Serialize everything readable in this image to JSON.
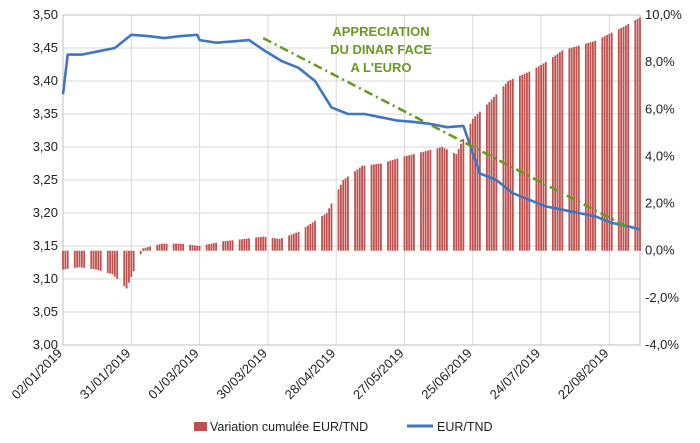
{
  "chart_data": {
    "type": "bar+line",
    "title": "",
    "annotation": [
      "APPRECIATION",
      "DU DINAR FACE",
      "A L'EURO"
    ],
    "left_axis": {
      "ylim": [
        3.0,
        3.5
      ],
      "ticks": [
        3.0,
        3.05,
        3.1,
        3.15,
        3.2,
        3.25,
        3.3,
        3.35,
        3.4,
        3.45,
        3.5
      ],
      "tick_labels": [
        "3,00",
        "3,05",
        "3,10",
        "3,15",
        "3,20",
        "3,25",
        "3,30",
        "3,35",
        "3,40",
        "3,45",
        "3,50"
      ]
    },
    "right_axis": {
      "ylim": [
        -4.0,
        10.0
      ],
      "ticks": [
        -4,
        -2,
        0,
        2,
        4,
        6,
        8,
        10
      ],
      "tick_labels": [
        "-4,0%",
        "-2,0%",
        "0,0%",
        "2,0%",
        "4,0%",
        "6,0%",
        "8,0%",
        "10,0%"
      ]
    },
    "x_axis": {
      "ticks": [
        "2019-01-02",
        "2019-01-31",
        "2019-03-01",
        "2019-03-30",
        "2019-04-28",
        "2019-05-27",
        "2019-06-25",
        "2019-07-24",
        "2019-08-22"
      ],
      "tick_labels": [
        "02/01/2019",
        "31/01/2019",
        "01/03/2019",
        "30/03/2019",
        "28/04/2019",
        "27/05/2019",
        "25/06/2019",
        "24/07/2019",
        "22/08/2019"
      ],
      "range": [
        "2019-01-02",
        "2019-09-04"
      ]
    },
    "grid": true,
    "legend_position": "bottom",
    "series": [
      {
        "name": "Variation cumulée EUR/TND",
        "type": "bar",
        "axis": "right",
        "color": "#c0504d",
        "x": [
          "2019-01-02",
          "2019-01-09",
          "2019-01-16",
          "2019-01-23",
          "2019-01-29",
          "2019-02-05",
          "2019-02-13",
          "2019-02-21",
          "2019-03-01",
          "2019-03-11",
          "2019-03-20",
          "2019-03-28",
          "2019-04-04",
          "2019-04-12",
          "2019-04-18",
          "2019-04-24",
          "2019-05-01",
          "2019-05-09",
          "2019-05-17",
          "2019-05-27",
          "2019-06-04",
          "2019-06-12",
          "2019-06-18",
          "2019-06-25",
          "2019-07-02",
          "2019-07-10",
          "2019-07-19",
          "2019-07-26",
          "2019-08-02",
          "2019-08-09",
          "2019-08-16",
          "2019-08-22",
          "2019-08-28",
          "2019-09-04"
        ],
        "values": [
          -0.8,
          -0.7,
          -0.8,
          -1.0,
          -1.6,
          0.1,
          0.3,
          0.3,
          0.2,
          0.4,
          0.5,
          0.6,
          0.5,
          0.8,
          1.2,
          1.6,
          3.0,
          3.6,
          3.7,
          4.0,
          4.2,
          4.4,
          4.1,
          5.6,
          6.3,
          7.2,
          7.6,
          8.0,
          8.5,
          8.7,
          8.9,
          9.2,
          9.5,
          9.9
        ]
      },
      {
        "name": "EUR/TND",
        "type": "line",
        "axis": "left",
        "color": "#3f76c1",
        "x": [
          "2019-01-02",
          "2019-01-04",
          "2019-01-10",
          "2019-01-17",
          "2019-01-24",
          "2019-01-31",
          "2019-02-07",
          "2019-02-14",
          "2019-02-21",
          "2019-02-28",
          "2019-03-01",
          "2019-03-08",
          "2019-03-15",
          "2019-03-22",
          "2019-03-29",
          "2019-04-05",
          "2019-04-12",
          "2019-04-19",
          "2019-04-26",
          "2019-05-03",
          "2019-05-10",
          "2019-05-17",
          "2019-05-24",
          "2019-05-31",
          "2019-06-07",
          "2019-06-14",
          "2019-06-21",
          "2019-06-28",
          "2019-07-05",
          "2019-07-12",
          "2019-07-19",
          "2019-07-26",
          "2019-08-02",
          "2019-08-09",
          "2019-08-16",
          "2019-08-23",
          "2019-08-30",
          "2019-09-04"
        ],
        "values": [
          3.38,
          3.44,
          3.44,
          3.445,
          3.45,
          3.47,
          3.468,
          3.465,
          3.468,
          3.47,
          3.462,
          3.458,
          3.46,
          3.462,
          3.445,
          3.43,
          3.42,
          3.4,
          3.36,
          3.35,
          3.35,
          3.345,
          3.34,
          3.338,
          3.335,
          3.33,
          3.332,
          3.26,
          3.25,
          3.23,
          3.22,
          3.21,
          3.205,
          3.2,
          3.195,
          3.185,
          3.18,
          3.175
        ]
      },
      {
        "name": "",
        "type": "trendline",
        "axis": "left",
        "color": "#6a9a22",
        "x": [
          "2019-03-28",
          "2019-08-29"
        ],
        "values": [
          3.465,
          3.18
        ]
      }
    ]
  },
  "legend": {
    "bar_label": "Variation cumulée EUR/TND",
    "line_label": "EUR/TND"
  }
}
